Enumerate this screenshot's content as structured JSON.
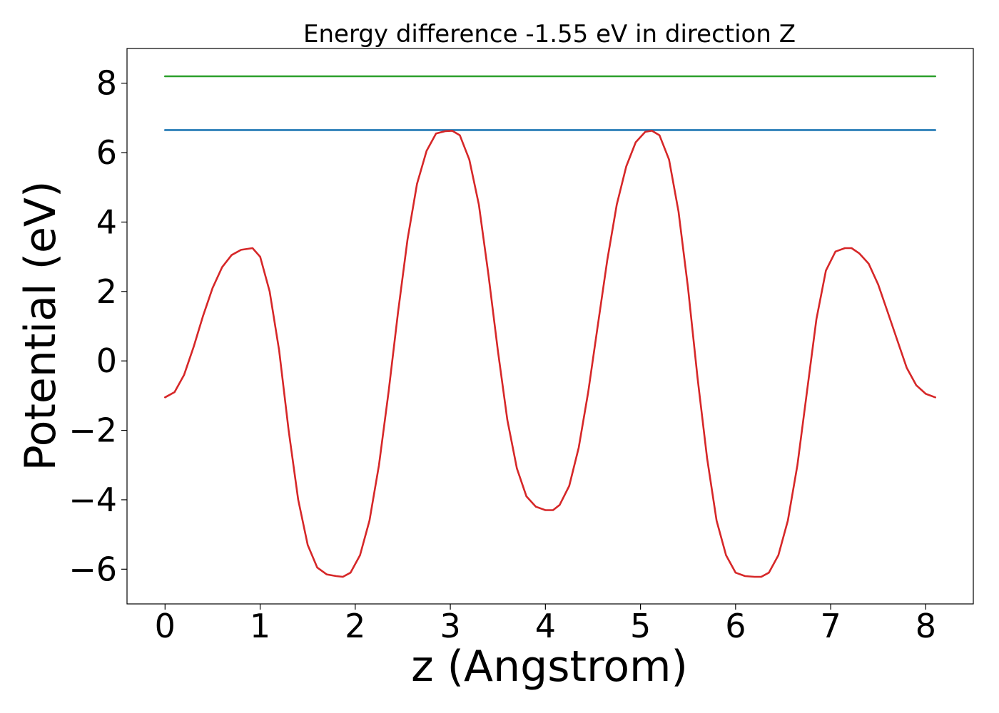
{
  "chart_data": {
    "type": "line",
    "title": "Energy difference -1.55 eV in direction Z",
    "xlabel": "z (Angstrom)",
    "ylabel": "Potential (eV)",
    "xlim": [
      -0.4,
      8.5
    ],
    "ylim": [
      -7,
      9
    ],
    "xticks": [
      0,
      1,
      2,
      3,
      4,
      5,
      6,
      7,
      8
    ],
    "xtick_labels": [
      "0",
      "1",
      "2",
      "3",
      "4",
      "5",
      "6",
      "7",
      "8"
    ],
    "yticks": [
      -6,
      -4,
      -2,
      0,
      2,
      4,
      6,
      8
    ],
    "ytick_labels": [
      "−6",
      "−4",
      "−2",
      "0",
      "2",
      "4",
      "6",
      "8"
    ],
    "grid": false,
    "series": [
      {
        "color": "#2ca02c",
        "x": [
          0,
          8.1
        ],
        "y": [
          8.2,
          8.2
        ]
      },
      {
        "color": "#1f77b4",
        "x": [
          0,
          8.1
        ],
        "y": [
          6.65,
          6.65
        ]
      },
      {
        "color": "#d62728",
        "x": [
          0.0,
          0.1,
          0.2,
          0.3,
          0.4,
          0.5,
          0.6,
          0.7,
          0.8,
          0.92,
          1.0,
          1.1,
          1.2,
          1.3,
          1.4,
          1.5,
          1.6,
          1.7,
          1.8,
          1.87,
          1.95,
          2.05,
          2.15,
          2.25,
          2.35,
          2.45,
          2.55,
          2.65,
          2.75,
          2.85,
          2.95,
          3.02,
          3.1,
          3.2,
          3.3,
          3.4,
          3.5,
          3.6,
          3.7,
          3.8,
          3.9,
          4.0,
          4.08,
          4.15,
          4.25,
          4.35,
          4.45,
          4.55,
          4.65,
          4.75,
          4.85,
          4.95,
          5.05,
          5.12,
          5.2,
          5.3,
          5.4,
          5.5,
          5.6,
          5.7,
          5.8,
          5.9,
          6.0,
          6.1,
          6.2,
          6.27,
          6.35,
          6.45,
          6.55,
          6.65,
          6.75,
          6.85,
          6.95,
          7.05,
          7.15,
          7.22,
          7.3,
          7.4,
          7.5,
          7.6,
          7.7,
          7.8,
          7.9,
          8.0,
          8.1
        ],
        "y": [
          -1.05,
          -0.9,
          -0.4,
          0.4,
          1.3,
          2.1,
          2.7,
          3.05,
          3.2,
          3.25,
          3.0,
          2.0,
          0.3,
          -2.0,
          -4.0,
          -5.3,
          -5.95,
          -6.15,
          -6.2,
          -6.22,
          -6.1,
          -5.6,
          -4.6,
          -3.0,
          -0.9,
          1.4,
          3.5,
          5.1,
          6.05,
          6.55,
          6.62,
          6.63,
          6.5,
          5.8,
          4.5,
          2.5,
          0.3,
          -1.7,
          -3.1,
          -3.9,
          -4.2,
          -4.3,
          -4.3,
          -4.15,
          -3.6,
          -2.5,
          -0.9,
          1.0,
          2.9,
          4.5,
          5.6,
          6.3,
          6.6,
          6.63,
          6.5,
          5.8,
          4.3,
          2.1,
          -0.5,
          -2.8,
          -4.6,
          -5.6,
          -6.1,
          -6.2,
          -6.22,
          -6.22,
          -6.1,
          -5.6,
          -4.6,
          -3.0,
          -0.9,
          1.2,
          2.6,
          3.15,
          3.25,
          3.25,
          3.1,
          2.8,
          2.2,
          1.4,
          0.6,
          -0.2,
          -0.7,
          -0.95,
          -1.05
        ]
      }
    ]
  }
}
